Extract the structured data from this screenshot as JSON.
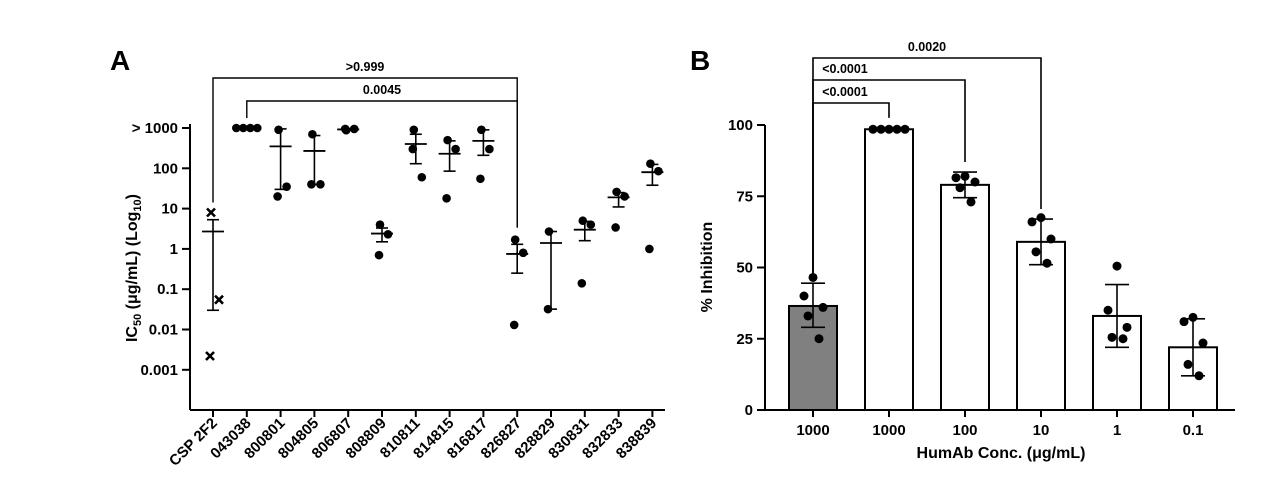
{
  "chart_data": [
    {
      "panel": "A",
      "type": "scatter",
      "ylabel": "IC50 (μg/mL) (Log10)",
      "ylabel_parts": {
        "main": "IC",
        "sub": "50",
        "mid": " (μg/mL) (Log",
        "sub2": "10",
        "end": ")"
      },
      "yscale": "log",
      "ylim": [
        0.0001,
        1000
      ],
      "yticks": [
        {
          "value": 1000,
          "label": "> 1000"
        },
        {
          "value": 100,
          "label": "100"
        },
        {
          "value": 10,
          "label": "10"
        },
        {
          "value": 1,
          "label": "1"
        },
        {
          "value": 0.1,
          "label": "0.1"
        },
        {
          "value": 0.01,
          "label": "0.01"
        },
        {
          "value": 0.001,
          "label": "0.001"
        }
      ],
      "categories": [
        "CSP 2F2",
        "043038",
        "800801",
        "804805",
        "806807",
        "808809",
        "810811",
        "814815",
        "816817",
        "826827",
        "828829",
        "830831",
        "832833",
        "838839"
      ],
      "series": [
        {
          "category": "CSP 2F2",
          "marker": "x",
          "points": [
            8,
            0.055,
            0.0022
          ],
          "mean": 2.7,
          "err": [
            0.03,
            5.3
          ]
        },
        {
          "category": "043038",
          "marker": "circle",
          "points": [
            1000,
            1000,
            1000,
            1000
          ],
          "mean": 1000,
          "err": [
            1000,
            1000
          ]
        },
        {
          "category": "800801",
          "marker": "circle",
          "points": [
            900,
            35,
            20
          ],
          "mean": 350,
          "err": [
            30,
            950
          ]
        },
        {
          "category": "804805",
          "marker": "circle",
          "points": [
            700,
            40,
            40
          ],
          "mean": 270,
          "err": [
            40,
            650
          ]
        },
        {
          "category": "806807",
          "marker": "circle",
          "points": [
            880,
            950,
            950
          ],
          "mean": 920,
          "err": [
            880,
            950
          ]
        },
        {
          "category": "808809",
          "marker": "circle",
          "points": [
            4,
            2.3,
            0.7
          ],
          "mean": 2.4,
          "err": [
            1.5,
            3.3
          ]
        },
        {
          "category": "810811",
          "marker": "circle",
          "points": [
            900,
            60,
            300
          ],
          "mean": 400,
          "err": [
            130,
            700
          ]
        },
        {
          "category": "814815",
          "marker": "circle",
          "points": [
            500,
            300,
            18
          ],
          "mean": 230,
          "err": [
            85,
            480
          ]
        },
        {
          "category": "816817",
          "marker": "circle",
          "points": [
            900,
            300,
            55
          ],
          "mean": 480,
          "err": [
            210,
            900
          ]
        },
        {
          "category": "826827",
          "marker": "circle",
          "points": [
            1.7,
            0.8,
            0.013
          ],
          "mean": 0.75,
          "err": [
            0.25,
            1.3
          ]
        },
        {
          "category": "828829",
          "marker": "circle",
          "points": [
            2.7,
            0.032
          ],
          "mean": 1.4,
          "err": [
            0.032,
            2.7
          ]
        },
        {
          "category": "830831",
          "marker": "circle",
          "points": [
            5,
            4,
            0.14
          ],
          "mean": 3,
          "err": [
            1.6,
            4.8
          ]
        },
        {
          "category": "832833",
          "marker": "circle",
          "points": [
            26,
            20,
            3.4
          ],
          "mean": 19,
          "err": [
            11,
            25
          ]
        },
        {
          "category": "838839",
          "marker": "circle",
          "points": [
            130,
            85,
            1
          ],
          "mean": 80,
          "err": [
            38,
            125
          ]
        }
      ],
      "annotations": [
        {
          "label": ">0.999",
          "from": "CSP 2F2",
          "to": "826827"
        },
        {
          "label": "0.0045",
          "from": "043038",
          "to": "826827"
        }
      ]
    },
    {
      "panel": "B",
      "type": "bar",
      "xlabel": "HumAb Conc. (μg/mL)",
      "ylabel": "% Inhibition",
      "ylim": [
        0,
        100
      ],
      "yticks": [
        "0",
        "25",
        "50",
        "75",
        "100"
      ],
      "categories": [
        "1000",
        "1000",
        "100",
        "10",
        "1",
        "0.1"
      ],
      "values": [
        36.5,
        98.5,
        79,
        59,
        33,
        22
      ],
      "bar_colors": [
        "#808080",
        "#ffffff",
        "#ffffff",
        "#ffffff",
        "#ffffff",
        "#ffffff"
      ],
      "err": [
        [
          29,
          44.5
        ],
        [
          98,
          99
        ],
        [
          74.5,
          83.5
        ],
        [
          51,
          67
        ],
        [
          22,
          44
        ],
        [
          12,
          32
        ]
      ],
      "points": [
        [
          46.5,
          40,
          36,
          33,
          25
        ],
        [
          98.5,
          98.5,
          98.5,
          98.5,
          98.5
        ],
        [
          82,
          81.5,
          80,
          78,
          73
        ],
        [
          67.5,
          66,
          60,
          55.5,
          51.5
        ],
        [
          50.5,
          35,
          29,
          25.5,
          25
        ],
        [
          32.5,
          31,
          23.5,
          16,
          12
        ]
      ],
      "annotations": [
        {
          "label": "0.0020",
          "from": 0,
          "to": 3
        },
        {
          "label": "<0.0001",
          "from": 0,
          "to": 2
        },
        {
          "label": "<0.0001",
          "from": 0,
          "to": 1
        }
      ]
    }
  ]
}
